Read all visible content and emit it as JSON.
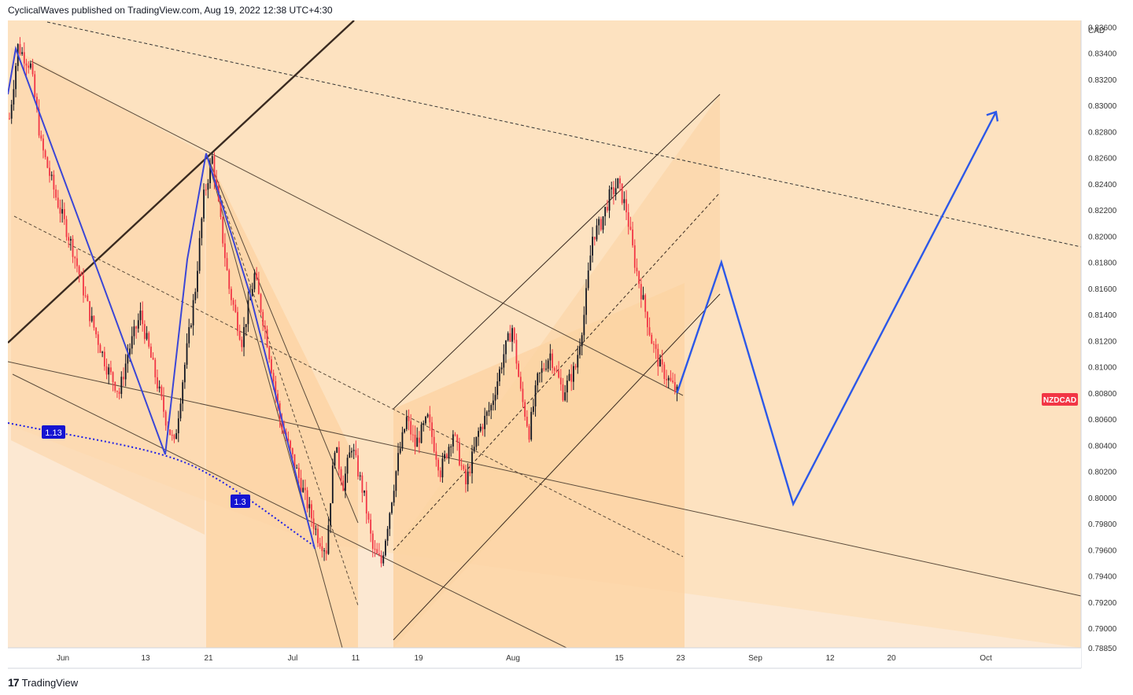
{
  "header": {
    "publisher": "CyclicalWaves",
    "text": "CyclicalWaves published on TradingView.com, Aug 19, 2022 12:38 UTC+4:30"
  },
  "footer": {
    "brand": "TradingView",
    "logo_mark": "17"
  },
  "colors": {
    "background": "#fde2c0",
    "zone": "#fcd3a3",
    "candle_up": "#131722",
    "candle_down": "#f23645",
    "wave": "#2c58e8",
    "fib_curve": "#1e1ee6",
    "symbol_badge": "#f23645",
    "label_badge": "#1414d2"
  },
  "chart_data": {
    "type": "candlestick",
    "symbol": "NZDCAD",
    "currency": "CAD",
    "y_ticks": [
      "0.83600",
      "0.83400",
      "0.83200",
      "0.83000",
      "0.82800",
      "0.82600",
      "0.82400",
      "0.82200",
      "0.82000",
      "0.81800",
      "0.81600",
      "0.81400",
      "0.81200",
      "0.81000",
      "0.80800",
      "0.80600",
      "0.80400",
      "0.80200",
      "0.80000",
      "0.79800",
      "0.79600",
      "0.79400",
      "0.79200",
      "0.79000",
      "0.78850"
    ],
    "x_ticks": [
      "Jun",
      "13",
      "21",
      "Jul",
      "11",
      "19",
      "Aug",
      "15",
      "23",
      "Sep",
      "12",
      "20",
      "Oct"
    ],
    "ylim": [
      0.7885,
      0.8365
    ],
    "fib_labels": [
      "1.13",
      "1.3"
    ],
    "last_price_label": "NZDCAD",
    "price_path": [
      [
        0,
        0.829
      ],
      [
        4,
        0.8345
      ],
      [
        10,
        0.833
      ],
      [
        15,
        0.827
      ],
      [
        22,
        0.823
      ],
      [
        30,
        0.819
      ],
      [
        38,
        0.814
      ],
      [
        46,
        0.81
      ],
      [
        52,
        0.808
      ],
      [
        56,
        0.811
      ],
      [
        62,
        0.814
      ],
      [
        68,
        0.81
      ],
      [
        74,
        0.806
      ],
      [
        78,
        0.804
      ],
      [
        82,
        0.809
      ],
      [
        88,
        0.816
      ],
      [
        92,
        0.823
      ],
      [
        96,
        0.826
      ],
      [
        100,
        0.821
      ],
      [
        104,
        0.816
      ],
      [
        110,
        0.812
      ],
      [
        116,
        0.817
      ],
      [
        122,
        0.812
      ],
      [
        128,
        0.806
      ],
      [
        134,
        0.803
      ],
      [
        140,
        0.8
      ],
      [
        146,
        0.797
      ],
      [
        150,
        0.796
      ],
      [
        154,
        0.804
      ],
      [
        158,
        0.801
      ],
      [
        162,
        0.804
      ],
      [
        168,
        0.8
      ],
      [
        172,
        0.796
      ],
      [
        176,
        0.795
      ],
      [
        180,
        0.799
      ],
      [
        184,
        0.803
      ],
      [
        188,
        0.806
      ],
      [
        192,
        0.804
      ],
      [
        198,
        0.806
      ],
      [
        204,
        0.802
      ],
      [
        210,
        0.805
      ],
      [
        216,
        0.801
      ],
      [
        222,
        0.805
      ],
      [
        228,
        0.807
      ],
      [
        234,
        0.811
      ],
      [
        238,
        0.813
      ],
      [
        242,
        0.808
      ],
      [
        246,
        0.805
      ],
      [
        250,
        0.809
      ],
      [
        256,
        0.811
      ],
      [
        262,
        0.808
      ],
      [
        268,
        0.81
      ],
      [
        272,
        0.814
      ],
      [
        276,
        0.82
      ],
      [
        280,
        0.821
      ],
      [
        284,
        0.823
      ],
      [
        288,
        0.824
      ],
      [
        292,
        0.822
      ],
      [
        296,
        0.818
      ],
      [
        300,
        0.815
      ],
      [
        304,
        0.812
      ],
      [
        308,
        0.81
      ],
      [
        312,
        0.809
      ],
      [
        316,
        0.808
      ]
    ],
    "projection_path": [
      [
        316,
        0.808
      ],
      [
        337,
        0.818
      ],
      [
        371,
        0.7995
      ],
      [
        467,
        0.8295
      ]
    ]
  }
}
